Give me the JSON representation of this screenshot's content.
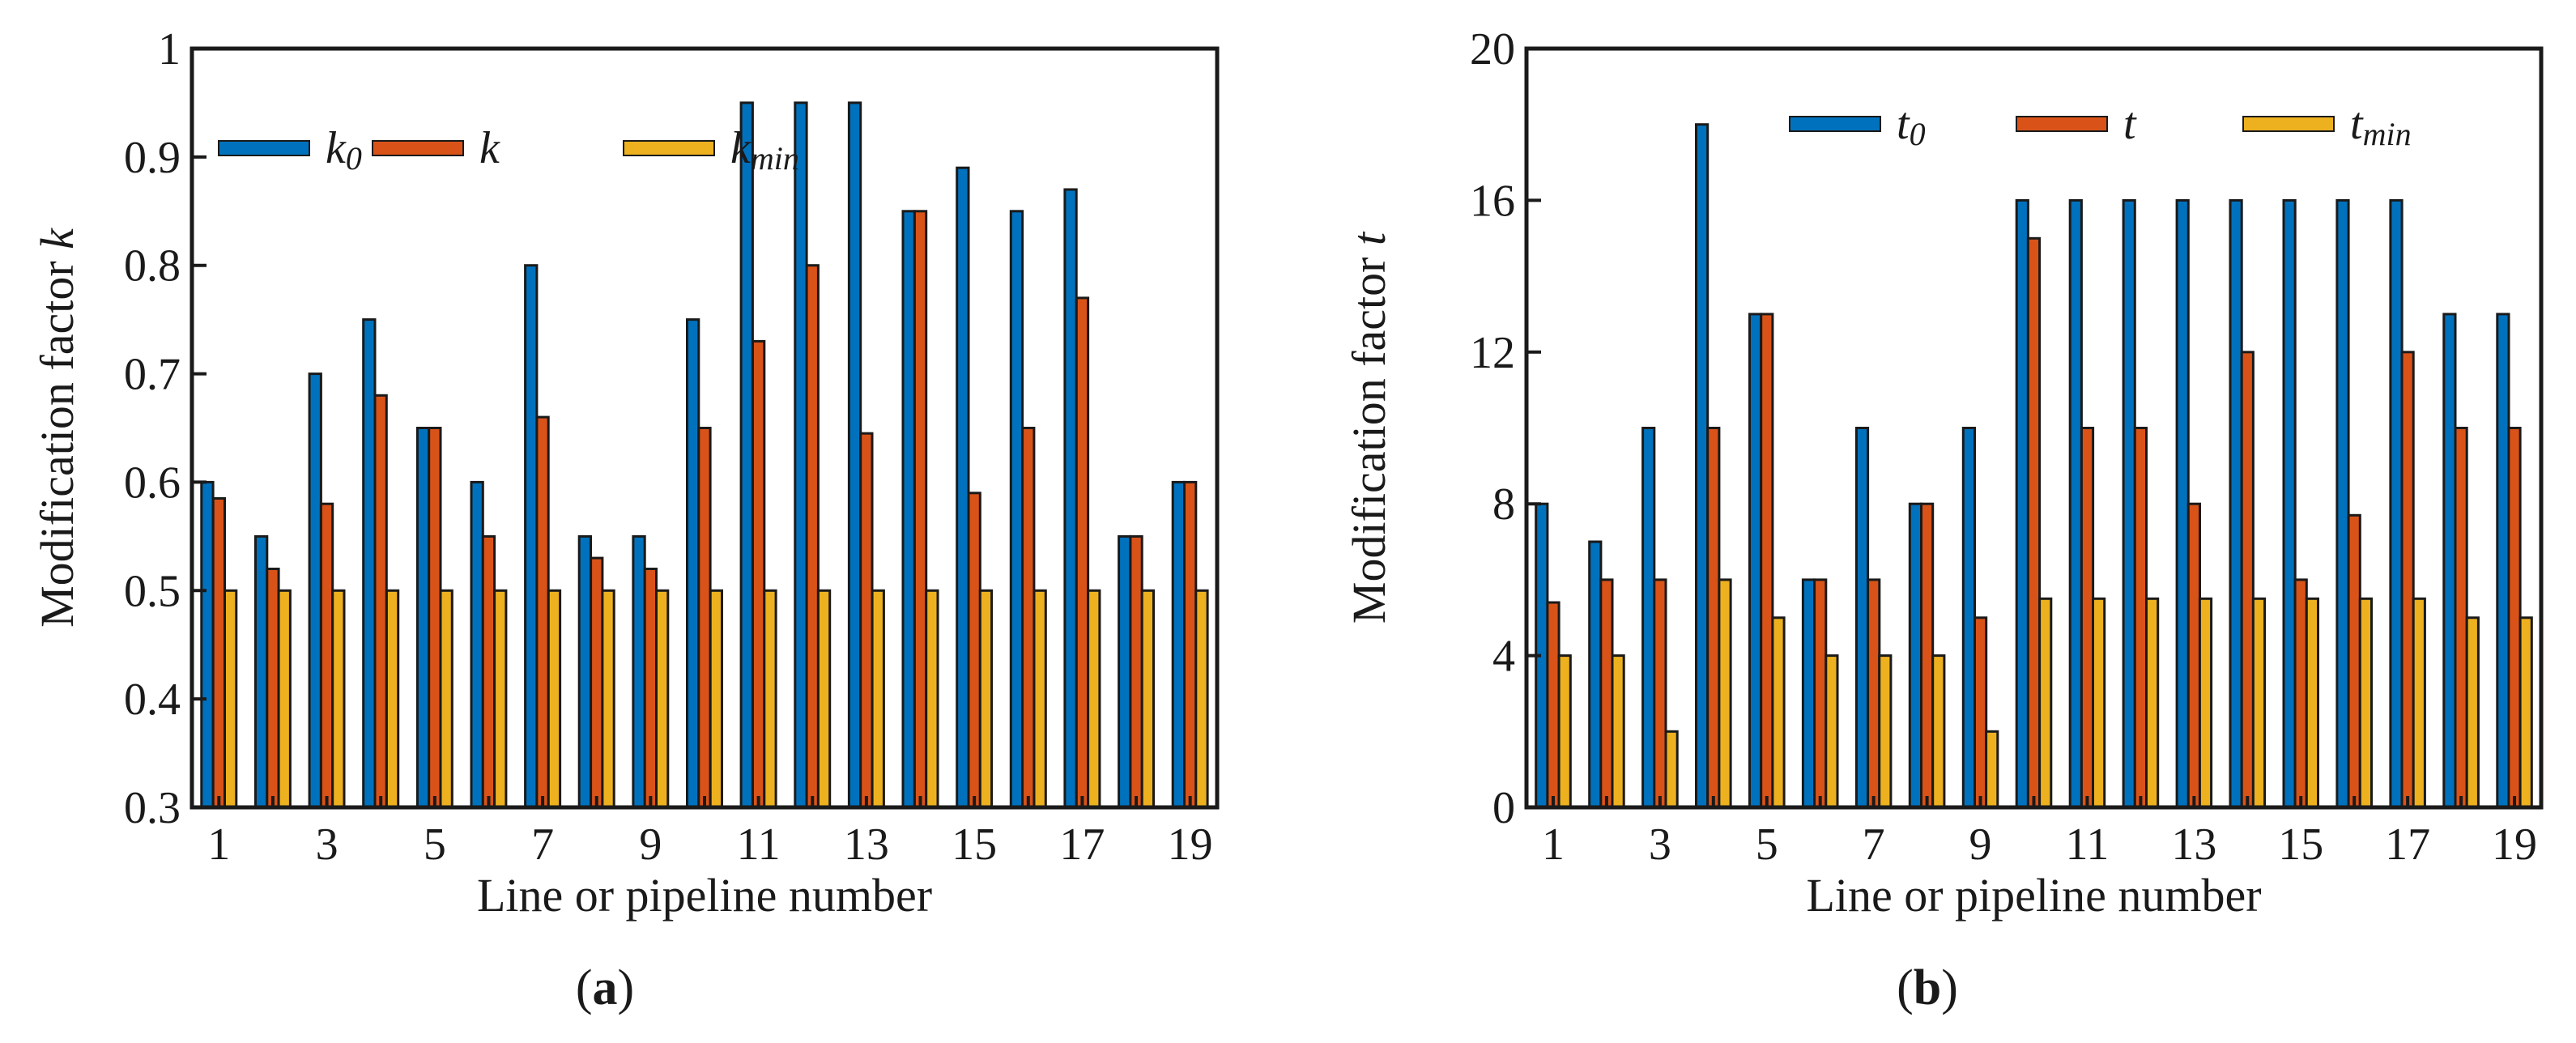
{
  "chart_data": [
    {
      "type": "bar",
      "panel_label": "(a)",
      "panel_letter": "a",
      "xlabel": "Line or pipeline number",
      "ylabel": "Modification factor k",
      "ylabel_main": "Modification factor ",
      "ylabel_var": "k",
      "ylim": [
        0.3,
        1.0
      ],
      "yticks": [
        0.3,
        0.4,
        0.5,
        0.6,
        0.7,
        0.8,
        0.9,
        1.0
      ],
      "ytick_labels": [
        "0.3",
        "0.4",
        "0.5",
        "0.6",
        "0.7",
        "0.8",
        "0.9",
        "1"
      ],
      "categories": [
        "1",
        "2",
        "3",
        "4",
        "5",
        "6",
        "7",
        "8",
        "9",
        "10",
        "11",
        "12",
        "13",
        "14",
        "15",
        "16",
        "17",
        "18",
        "19"
      ],
      "xtick_labels": [
        "1",
        "3",
        "5",
        "7",
        "9",
        "11",
        "13",
        "15",
        "17",
        "19"
      ],
      "legend_position": "top-left",
      "series": [
        {
          "name": "k0",
          "label_main": "k",
          "label_sub": "0",
          "color": "#0072BD",
          "values": [
            0.6,
            0.55,
            0.7,
            0.75,
            0.65,
            0.6,
            0.8,
            0.55,
            0.55,
            0.75,
            0.95,
            0.95,
            0.95,
            0.85,
            0.89,
            0.85,
            0.87,
            0.55,
            0.6
          ]
        },
        {
          "name": "k",
          "label_main": "k",
          "label_sub": "",
          "color": "#D95319",
          "values": [
            0.585,
            0.52,
            0.58,
            0.68,
            0.65,
            0.55,
            0.66,
            0.53,
            0.52,
            0.65,
            0.73,
            0.8,
            0.645,
            0.85,
            0.59,
            0.65,
            0.77,
            0.55,
            0.6
          ]
        },
        {
          "name": "kmin",
          "label_main": "k",
          "label_sub": "min",
          "color": "#EDB120",
          "values": [
            0.5,
            0.5,
            0.5,
            0.5,
            0.5,
            0.5,
            0.5,
            0.5,
            0.5,
            0.5,
            0.5,
            0.5,
            0.5,
            0.5,
            0.5,
            0.5,
            0.5,
            0.5,
            0.5
          ]
        }
      ]
    },
    {
      "type": "bar",
      "panel_label": "(b)",
      "panel_letter": "b",
      "xlabel": "Line or pipeline number",
      "ylabel": "Modification factor t",
      "ylabel_main": "Modification factor ",
      "ylabel_var": "t",
      "ylim": [
        0,
        20
      ],
      "yticks": [
        0,
        4,
        8,
        12,
        16,
        20
      ],
      "ytick_labels": [
        "0",
        "4",
        "8",
        "12",
        "16",
        "20"
      ],
      "categories": [
        "1",
        "2",
        "3",
        "4",
        "5",
        "6",
        "7",
        "8",
        "9",
        "10",
        "11",
        "12",
        "13",
        "14",
        "15",
        "16",
        "17",
        "18",
        "19"
      ],
      "xtick_labels": [
        "1",
        "3",
        "5",
        "7",
        "9",
        "11",
        "13",
        "15",
        "17",
        "19"
      ],
      "legend_position": "top",
      "series": [
        {
          "name": "t0",
          "label_main": "t",
          "label_sub": "0",
          "color": "#0072BD",
          "values": [
            8,
            7,
            10,
            18,
            13,
            6,
            10,
            8,
            10,
            16,
            16,
            16,
            16,
            16,
            16,
            16,
            16,
            13,
            13
          ]
        },
        {
          "name": "t",
          "label_main": "t",
          "label_sub": "",
          "color": "#D95319",
          "values": [
            5.4,
            6,
            6,
            10,
            13,
            6,
            6,
            8,
            5,
            15,
            10,
            10,
            8,
            12,
            6,
            7.7,
            12,
            10,
            10
          ]
        },
        {
          "name": "tmin",
          "label_main": "t",
          "label_sub": "min",
          "color": "#EDB120",
          "values": [
            4,
            4,
            2,
            6,
            5,
            4,
            4,
            4,
            2,
            5.5,
            5.5,
            5.5,
            5.5,
            5.5,
            5.5,
            5.5,
            5.5,
            5,
            5
          ]
        }
      ]
    }
  ]
}
